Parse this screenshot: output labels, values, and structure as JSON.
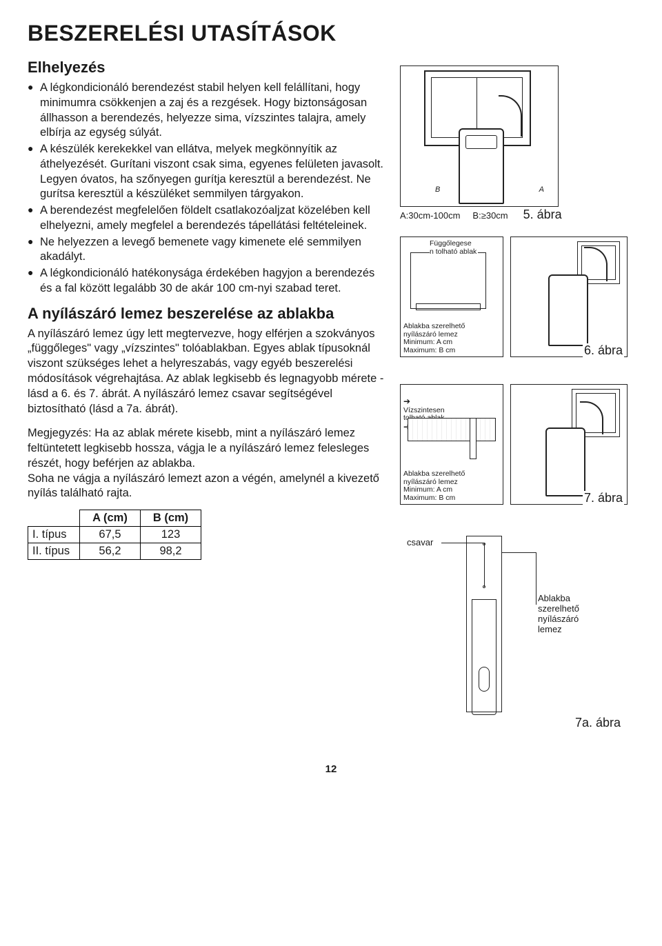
{
  "title": "BESZERELÉSI UTASÍTÁSOK",
  "section_placement": "Elhelyezés",
  "bullets": [
    "A légkondicionáló berendezést stabil helyen kell felállítani, hogy minimumra csökkenjen a zaj és a rezgések. Hogy biztonságosan állhasson a berendezés, helyezze sima, vízszintes talajra, amely elbírja az egység súlyát.",
    "A készülék kerekekkel van ellátva, melyek megkönnyítik az áthelyezését. Gurítani viszont csak sima, egyenes felületen javasolt. Legyen óvatos, ha szőnyegen gurítja keresztül a berendezést. Ne gurítsa keresztül a készüléket semmilyen tárgyakon.",
    "A berendezést megfelelően földelt csatlakozóaljzat közelében kell elhelyezni, amely megfelel a berendezés tápellátási feltételeinek.",
    "Ne helyezzen a levegő bemenete vagy kimenete elé semmilyen akadályt.",
    "A légkondicionáló hatékonysága érdekében hagyjon a berendezés és a fal között legalább 30 de akár 100 cm-nyi szabad teret."
  ],
  "section_window": "A nyílászáró lemez beszerelése az ablakba",
  "window_para": "A nyílászáró lemez úgy lett megtervezve, hogy elférjen a szokványos „függőleges\" vagy „vízszintes\" tolóablakban. Egyes ablak típusoknál viszont szükséges lehet a helyreszabás, vagy egyéb beszerelési módosítások végrehajtása. Az ablak legkisebb és legnagyobb mérete - lásd a 6. és 7. ábrát. A nyílászáró lemez csavar segítségével biztosítható (lásd a 7a. ábrát).",
  "note": "Megjegyzés: Ha az ablak mérete kisebb, mint a nyílászáró lemez feltüntetett legkisebb hossza, vágja le a nyílászáró lemez felesleges részét, hogy beférjen az ablakba.\nSoha ne vágja a nyílászáró lemezt azon a végén, amelynél a kivezető nyílás található rajta.",
  "table": {
    "headers": [
      "A (cm)",
      "B (cm)"
    ],
    "rows": [
      {
        "label": "I. típus",
        "a": "67,5",
        "b": "123"
      },
      {
        "label": "II. típus",
        "a": "56,2",
        "b": "98,2"
      }
    ]
  },
  "fig5": {
    "a_label": "A:30cm-100cm",
    "b_label": "B:≥30cm",
    "ba": "B",
    "aa": "A",
    "caption": "5. ábra"
  },
  "fig6": {
    "annot_top": "Függőlegese\nn tolható ablak",
    "annot_bottom": "Ablakba szerelhető\nnyílászáró lemez\nMinimum: A cm\nMaximum: B cm",
    "caption": "6. ábra"
  },
  "fig7": {
    "annot_top": "Vízszintesen tolható ablak",
    "annot_bottom": "Ablakba szerelhető\nnyílászáró lemez\nMinimum: A cm\nMaximum: B cm",
    "caption": "7. ábra"
  },
  "fig7a": {
    "screw": "csavar",
    "plate": "Ablakba szerelhető nyílászáró lemez",
    "caption": "7a. ábra"
  },
  "page_number": "12"
}
